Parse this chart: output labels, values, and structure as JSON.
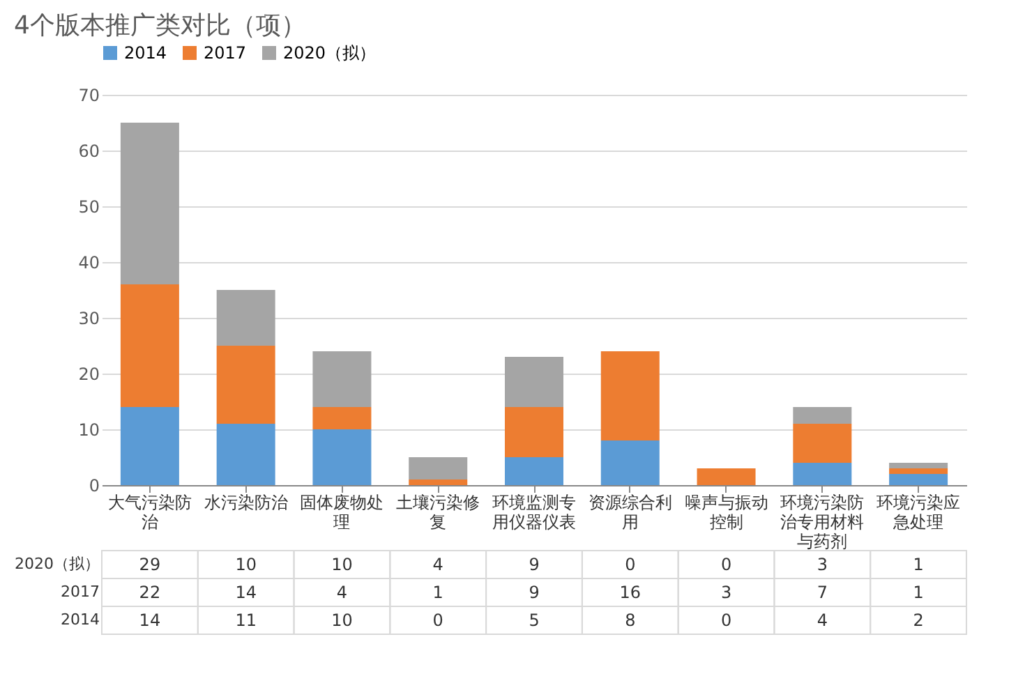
{
  "chart_data": {
    "type": "bar",
    "title": "4个版本推广类对比（项）",
    "stacked": true,
    "data_labels": true,
    "legend": "top",
    "grid": "y",
    "categories": [
      "大气污染防治",
      "水污染防治",
      "固体废物处理",
      "土壤污染修复",
      "环境监测专用仪器仪表",
      "资源综合利用",
      "噪声与振动控制",
      "环境污染防治专用材料与药剂",
      "环境污染应急处理"
    ],
    "ylim": [
      0,
      70
    ],
    "yticks": [
      0,
      10,
      20,
      30,
      40,
      50,
      60,
      70
    ],
    "series": [
      {
        "name": "2014",
        "color": "#5b9bd5",
        "values": [
          14,
          11,
          10,
          0,
          5,
          8,
          0,
          4,
          2
        ]
      },
      {
        "name": "2017",
        "color": "#ed7d31",
        "values": [
          22,
          14,
          4,
          1,
          9,
          16,
          3,
          7,
          1
        ]
      },
      {
        "name": "2020（拟）",
        "color": "#a5a5a5",
        "values": [
          29,
          10,
          10,
          4,
          9,
          0,
          0,
          3,
          1
        ]
      }
    ]
  }
}
